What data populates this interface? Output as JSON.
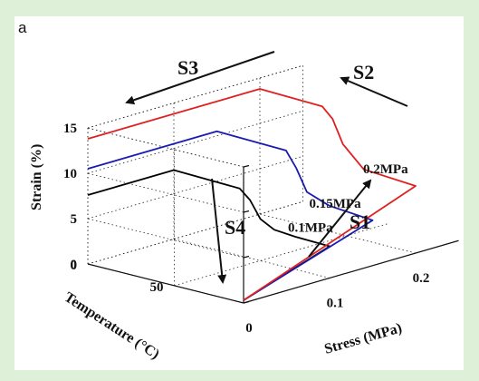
{
  "panel_label": "a",
  "chart_data": {
    "type": "line",
    "subtype": "3d-line",
    "title": "",
    "axes": {
      "x": {
        "label": "Stress (MPa)",
        "range": [
          0,
          0.25
        ],
        "ticks": [
          "0",
          "0.1",
          "0.2"
        ]
      },
      "y": {
        "label": "Temperature (°C)",
        "range": [
          0,
          90
        ],
        "ticks": [
          "0",
          "50"
        ]
      },
      "z": {
        "label": "Strain (%)",
        "range": [
          0,
          15
        ],
        "ticks": [
          "0",
          "5",
          "10",
          "15"
        ]
      }
    },
    "grid": true,
    "legend": "none",
    "series": [
      {
        "name": "0.1MPa",
        "color": "#000000",
        "points": [
          {
            "stress": 0.0,
            "temp": 90,
            "strain": 0.3
          },
          {
            "stress": 0.1,
            "temp": 90,
            "strain": 3.5
          },
          {
            "stress": 0.1,
            "temp": 70,
            "strain": 3.6
          },
          {
            "stress": 0.1,
            "temp": 58,
            "strain": 3.8
          },
          {
            "stress": 0.1,
            "temp": 50,
            "strain": 4.6
          },
          {
            "stress": 0.1,
            "temp": 44,
            "strain": 6.4
          },
          {
            "stress": 0.1,
            "temp": 38,
            "strain": 7.4
          },
          {
            "stress": 0.1,
            "temp": 0,
            "strain": 7.6
          },
          {
            "stress": 0.0,
            "temp": 0,
            "strain": 7.6
          }
        ]
      },
      {
        "name": "0.15MPa",
        "color": "#1a1ab0",
        "points": [
          {
            "stress": 0.0,
            "temp": 90,
            "strain": 0.3
          },
          {
            "stress": 0.15,
            "temp": 90,
            "strain": 5.0
          },
          {
            "stress": 0.15,
            "temp": 65,
            "strain": 5.4
          },
          {
            "stress": 0.15,
            "temp": 52,
            "strain": 6.3
          },
          {
            "stress": 0.15,
            "temp": 46,
            "strain": 8.6
          },
          {
            "stress": 0.15,
            "temp": 40,
            "strain": 10.3
          },
          {
            "stress": 0.15,
            "temp": 0,
            "strain": 10.5
          },
          {
            "stress": 0.0,
            "temp": 0,
            "strain": 10.5
          }
        ]
      },
      {
        "name": "0.2MPa",
        "color": "#e02020",
        "points": [
          {
            "stress": 0.0,
            "temp": 90,
            "strain": 0.3
          },
          {
            "stress": 0.2,
            "temp": 90,
            "strain": 7.4
          },
          {
            "stress": 0.2,
            "temp": 60,
            "strain": 7.8
          },
          {
            "stress": 0.2,
            "temp": 48,
            "strain": 10.0
          },
          {
            "stress": 0.2,
            "temp": 42,
            "strain": 12.5
          },
          {
            "stress": 0.2,
            "temp": 36,
            "strain": 13.6
          },
          {
            "stress": 0.2,
            "temp": 0,
            "strain": 13.8
          },
          {
            "stress": 0.0,
            "temp": 0,
            "strain": 13.8
          }
        ]
      }
    ],
    "annotations": [
      {
        "text": "S1",
        "arrow": "loading"
      },
      {
        "text": "S2",
        "arrow": "cooling"
      },
      {
        "text": "S3",
        "arrow": "unloading"
      },
      {
        "text": "S4",
        "arrow": "heating"
      }
    ]
  }
}
